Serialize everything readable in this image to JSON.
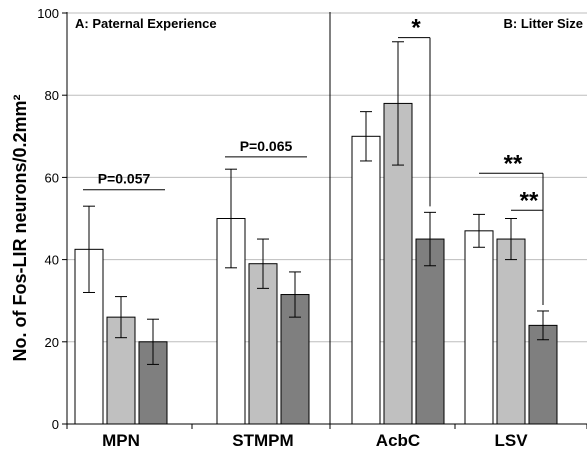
{
  "chart_data": {
    "type": "bar",
    "ylabel": "No. of Fos-LIR neurons/0.2mm²",
    "ylim": [
      0,
      100
    ],
    "yticks": [
      0,
      20,
      40,
      60,
      80,
      100
    ],
    "grid": true,
    "panels": [
      {
        "label": "A: Paternal Experience",
        "categories": [
          "MPN",
          "STMPM"
        ]
      },
      {
        "label": "B: Litter Size",
        "categories": [
          "AcbC",
          "LSV"
        ]
      }
    ],
    "categories": [
      "MPN",
      "STMPM",
      "AcbC",
      "LSV"
    ],
    "series": [
      {
        "color": "#ffffff",
        "values": [
          42.5,
          50,
          70,
          47
        ],
        "errors": [
          10.5,
          12,
          6,
          4
        ]
      },
      {
        "color": "#c0c0c0",
        "values": [
          26,
          39,
          78,
          45
        ],
        "errors": [
          5,
          6,
          15,
          5
        ]
      },
      {
        "color": "#7f7f7f",
        "values": [
          20,
          31.5,
          45,
          24
        ],
        "errors": [
          5.5,
          5.5,
          6.5,
          3.5
        ]
      }
    ],
    "annotations": [
      {
        "text": "P=0.057",
        "category": 0,
        "series": [
          0,
          2
        ],
        "y": 57,
        "style": "bracket"
      },
      {
        "text": "P=0.065",
        "category": 1,
        "series": [
          0,
          2
        ],
        "y": 65,
        "style": "bracket"
      },
      {
        "text": "*",
        "category": 2,
        "series": [
          1,
          2
        ],
        "y": 94,
        "style": "elbow"
      },
      {
        "text": "**",
        "category": 3,
        "series": [
          0,
          2
        ],
        "y": 61,
        "style": "elbow"
      },
      {
        "text": "**",
        "category": 3,
        "series": [
          1,
          2
        ],
        "y": 52,
        "style": "elbow"
      }
    ]
  }
}
